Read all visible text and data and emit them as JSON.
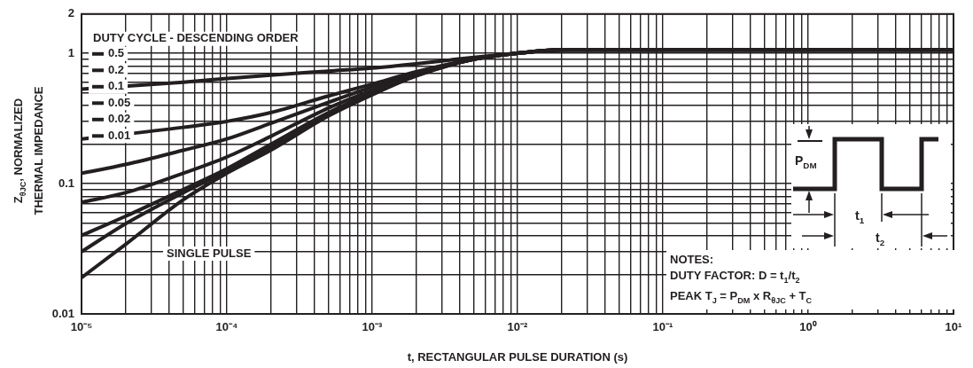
{
  "chart_data": {
    "type": "line",
    "xlabel": "t, RECTANGULAR PULSE DURATION (s)",
    "ylabel": "Z$_{θJC}$, NORMALIZED\nTHERMAL IMPEDANCE",
    "legend_title": "DUTY CYCLE - DESCENDING ORDER",
    "annotations": [
      "NOTES:",
      "DUTY FACTOR: D = t$_{1}$/t$_{2}$",
      "PEAK T$_{J}$ = P$_{DM}$ x R$_{θJC}$ + T$_{C}$",
      "P$_{DM}$",
      "t$_{1}$",
      "t$_{2}$"
    ],
    "log": "xy",
    "legend": "top left",
    "grid": true,
    "marker": "none",
    "line_style": "solid",
    "xlim": [
      1e-05,
      10
    ],
    "ylim": [
      0.01,
      2
    ],
    "xticks": [
      {
        "value": 1e-05,
        "label": "10⁻⁵"
      },
      {
        "value": 2e-05,
        "label": null
      },
      {
        "value": 3e-05,
        "label": null
      },
      {
        "value": 4e-05,
        "label": null
      },
      {
        "value": 5e-05,
        "label": null
      },
      {
        "value": 6e-05,
        "label": null
      },
      {
        "value": 7e-05,
        "label": null
      },
      {
        "value": 8e-05,
        "label": null
      },
      {
        "value": 9e-05,
        "label": null
      },
      {
        "value": 0.0001,
        "label": "10⁻⁴"
      },
      {
        "value": 0.0002,
        "label": null
      },
      {
        "value": 0.0003,
        "label": null
      },
      {
        "value": 0.0004,
        "label": null
      },
      {
        "value": 0.0005,
        "label": null
      },
      {
        "value": 0.0006,
        "label": null
      },
      {
        "value": 0.0007,
        "label": null
      },
      {
        "value": 0.0008,
        "label": null
      },
      {
        "value": 0.0009,
        "label": null
      },
      {
        "value": 0.001,
        "label": "10⁻³"
      },
      {
        "value": 0.002,
        "label": null
      },
      {
        "value": 0.003,
        "label": null
      },
      {
        "value": 0.004,
        "label": null
      },
      {
        "value": 0.005,
        "label": null
      },
      {
        "value": 0.006,
        "label": null
      },
      {
        "value": 0.007,
        "label": null
      },
      {
        "value": 0.008,
        "label": null
      },
      {
        "value": 0.009,
        "label": null
      },
      {
        "value": 0.01,
        "label": "10⁻²"
      },
      {
        "value": 0.02,
        "label": null
      },
      {
        "value": 0.03,
        "label": null
      },
      {
        "value": 0.04,
        "label": null
      },
      {
        "value": 0.05,
        "label": null
      },
      {
        "value": 0.06,
        "label": null
      },
      {
        "value": 0.07,
        "label": null
      },
      {
        "value": 0.08,
        "label": null
      },
      {
        "value": 0.09,
        "label": null
      },
      {
        "value": 0.1,
        "label": "10⁻¹"
      },
      {
        "value": 0.2,
        "label": null
      },
      {
        "value": 0.3,
        "label": null
      },
      {
        "value": 0.4,
        "label": null
      },
      {
        "value": 0.5,
        "label": null
      },
      {
        "value": 0.6,
        "label": null
      },
      {
        "value": 0.7,
        "label": null
      },
      {
        "value": 0.8,
        "label": null
      },
      {
        "value": 0.9,
        "label": null
      },
      {
        "value": 1,
        "label": "10⁰"
      },
      {
        "value": 2,
        "label": null
      },
      {
        "value": 3,
        "label": null
      },
      {
        "value": 4,
        "label": null
      },
      {
        "value": 5,
        "label": null
      },
      {
        "value": 6,
        "label": null
      },
      {
        "value": 7,
        "label": null
      },
      {
        "value": 8,
        "label": null
      },
      {
        "value": 9,
        "label": null
      },
      {
        "value": 10,
        "label": "10¹"
      }
    ],
    "yticks": [
      0.01,
      {
        "value": 0.02,
        "label": null
      },
      {
        "value": 0.03,
        "label": null
      },
      {
        "value": 0.04,
        "label": null
      },
      {
        "value": 0.05,
        "label": null
      },
      {
        "value": 0.06,
        "label": null
      },
      {
        "value": 0.07,
        "label": null
      },
      {
        "value": 0.08,
        "label": null
      },
      {
        "value": 0.09,
        "label": null
      },
      0.1,
      {
        "value": 0.2,
        "label": null
      },
      {
        "value": 0.3,
        "label": null
      },
      {
        "value": 0.4,
        "label": null
      },
      {
        "value": 0.5,
        "label": null
      },
      {
        "value": 0.6,
        "label": null
      },
      {
        "value": 0.7,
        "label": null
      },
      {
        "value": 0.8,
        "label": null
      },
      {
        "value": 0.9,
        "label": null
      },
      1,
      2
    ],
    "x": [
      1e-05,
      2e-05,
      5e-05,
      0.0001,
      0.0002,
      0.0005,
      0.001,
      0.002,
      0.005,
      0.01,
      0.02,
      10
    ],
    "series": [
      {
        "name": "0.5",
        "color": "#231f20",
        "values": [
          0.53,
          null,
          0.6,
          0.64,
          0.68,
          0.73,
          0.77,
          0.83,
          0.93,
          1.0,
          1.06,
          1.06
        ]
      },
      {
        "name": "0.2",
        "color": "#231f20",
        "values": [
          0.22,
          null,
          0.27,
          0.3,
          0.35,
          0.47,
          0.58,
          0.72,
          0.9,
          1.0,
          1.06,
          1.06
        ]
      },
      {
        "name": "0.1",
        "color": "#231f20",
        "values": [
          0.12,
          0.14,
          0.18,
          0.22,
          0.29,
          0.42,
          0.55,
          0.7,
          0.9,
          1.0,
          1.06,
          1.06
        ]
      },
      {
        "name": "0.05",
        "color": "#231f20",
        "values": [
          0.072,
          0.085,
          0.12,
          0.16,
          0.23,
          0.38,
          0.52,
          0.69,
          0.9,
          1.0,
          1.06,
          1.06
        ]
      },
      {
        "name": "0.02",
        "color": "#231f20",
        "values": [
          0.04,
          0.056,
          0.09,
          0.13,
          0.2,
          0.35,
          0.5,
          0.68,
          0.9,
          1.0,
          1.06,
          1.06
        ]
      },
      {
        "name": "0.01",
        "color": "#231f20",
        "values": [
          0.03,
          0.049,
          0.085,
          0.125,
          0.19,
          0.34,
          0.49,
          0.67,
          0.9,
          1.0,
          1.06,
          1.06
        ]
      },
      {
        "name": "SINGLE PULSE",
        "color": "#231f20",
        "values": [
          0.019,
          0.034,
          0.075,
          0.12,
          0.18,
          0.33,
          0.48,
          0.67,
          0.9,
          1.0,
          1.06,
          1.06
        ]
      }
    ]
  }
}
